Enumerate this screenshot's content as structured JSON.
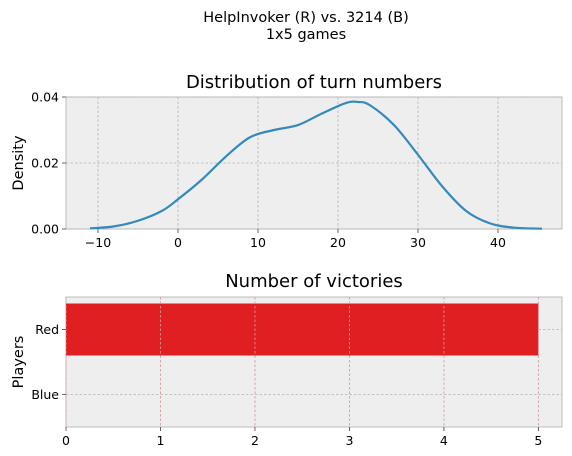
{
  "figure": {
    "suptitle_line1": "HelpInvoker (R) vs. 3214 (B)",
    "suptitle_line2": "1x5 games"
  },
  "chart_data": [
    {
      "type": "line",
      "title": "Distribution of turn numbers",
      "xlabel": "",
      "ylabel": "Density",
      "xlim": [
        -14,
        48
      ],
      "ylim": [
        0,
        0.04
      ],
      "xticks": [
        -10,
        0,
        10,
        20,
        30,
        40
      ],
      "yticks": [
        "0.00",
        "0.02",
        "0.04"
      ],
      "grid": true,
      "series": [
        {
          "color": "#348abd",
          "x": [
            -11,
            -8,
            -5,
            -2,
            0,
            3,
            6,
            9,
            12,
            15,
            18,
            21,
            22.5,
            24,
            27,
            30,
            33,
            36,
            39,
            42,
            45.5
          ],
          "y": [
            0.0002,
            0.0008,
            0.0025,
            0.0055,
            0.009,
            0.015,
            0.022,
            0.0278,
            0.03,
            0.0315,
            0.035,
            0.0382,
            0.0385,
            0.0375,
            0.0315,
            0.0225,
            0.013,
            0.0055,
            0.0017,
            0.0004,
            0.0001
          ]
        }
      ]
    },
    {
      "type": "bar",
      "orientation": "horizontal",
      "title": "Number of victories",
      "xlabel": "",
      "ylabel": "Players",
      "categories": [
        "Red",
        "Blue"
      ],
      "values": [
        5,
        0
      ],
      "colors": [
        "#e01f22",
        "#1f4fe0"
      ],
      "xlim": [
        0,
        5.25
      ],
      "xticks": [
        0,
        1,
        2,
        3,
        4,
        5
      ],
      "grid": true
    }
  ]
}
